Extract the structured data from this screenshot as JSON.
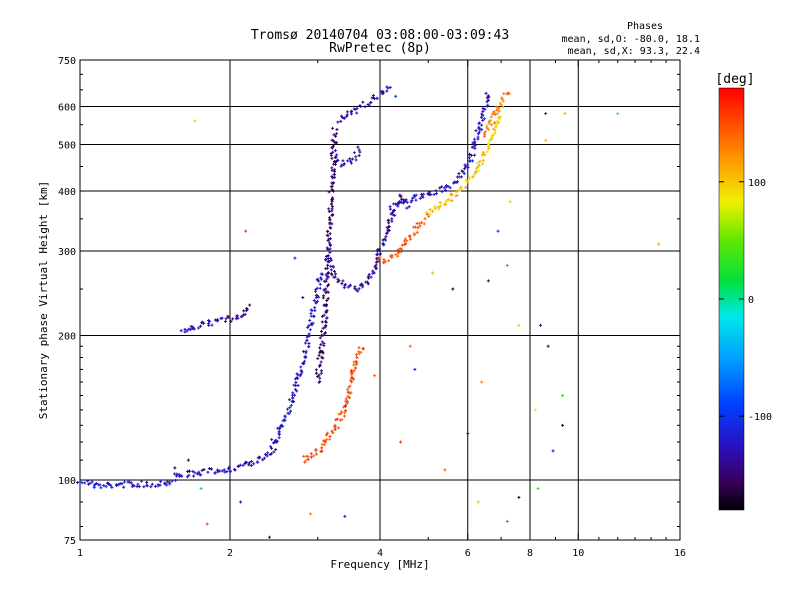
{
  "header": {
    "title_line1": "Tromsø 20140704 03:08:00-03:09:43",
    "title_line2": "RwPretec (8p)"
  },
  "phases_box": {
    "heading": "Phases",
    "line_o": "mean, sd,O: -80.0, 18.1",
    "line_x": "mean, sd,X:  93.3, 22.4"
  },
  "colorbar": {
    "label": "[deg]",
    "ticks": [
      {
        "label": "100",
        "value": 100
      },
      {
        "label": "0",
        "value": 0
      },
      {
        "label": "-100",
        "value": -100
      }
    ],
    "range": [
      -180,
      180
    ]
  },
  "chart_data": {
    "type": "scatter",
    "title": "Tromsø 20140704 03:08:00-03:09:43",
    "subtitle": "RwPretec (8p)",
    "xlabel": "Frequency [MHz]",
    "ylabel": "Stationary phase Virtual Height [km]",
    "xscale": "log",
    "yscale": "log",
    "xlim": [
      1,
      16
    ],
    "ylim": [
      75,
      750
    ],
    "x_ticks": [
      {
        "label": "1",
        "value": 1
      },
      {
        "label": "2",
        "value": 2
      },
      {
        "label": "4",
        "value": 4
      },
      {
        "label": "6",
        "value": 6
      },
      {
        "label": "8",
        "value": 8
      },
      {
        "label": "10",
        "value": 10
      },
      {
        "label": "16",
        "value": 16
      }
    ],
    "x_gridlines": [
      2,
      4,
      6,
      8,
      10
    ],
    "y_ticks": [
      {
        "label": "75",
        "value": 75
      },
      {
        "label": "100",
        "value": 100
      },
      {
        "label": "200",
        "value": 200
      },
      {
        "label": "300",
        "value": 300
      },
      {
        "label": "400",
        "value": 400
      },
      {
        "label": "500",
        "value": 500
      },
      {
        "label": "600",
        "value": 600
      },
      {
        "label": "750",
        "value": 750
      }
    ],
    "y_gridlines": [
      100,
      200,
      300,
      400,
      500,
      600
    ],
    "color_variable": "phase [deg]",
    "traces": [
      {
        "x": [
          1.0,
          1.05,
          1.1,
          1.2,
          1.3,
          1.4,
          1.5,
          1.55
        ],
        "y": [
          100,
          98,
          97,
          98,
          98,
          98,
          99,
          100
        ],
        "phase": -120
      },
      {
        "x": [
          1.55,
          1.65,
          1.8,
          1.95,
          2.05,
          2.2,
          2.35,
          2.5
        ],
        "y": [
          102,
          103,
          104,
          105,
          106,
          108,
          112,
          120
        ],
        "phase": -130
      },
      {
        "x": [
          2.45,
          2.55,
          2.65,
          2.75,
          2.85,
          2.95,
          3.05
        ],
        "y": [
          120,
          130,
          145,
          165,
          190,
          230,
          270
        ],
        "phase": -120
      },
      {
        "x": [
          1.6,
          1.8,
          1.95,
          2.1,
          2.2
        ],
        "y": [
          205,
          212,
          215,
          220,
          230
        ],
        "phase": -135
      },
      {
        "x": [
          3.0,
          3.05,
          3.1,
          3.15,
          3.2,
          3.25
        ],
        "y": [
          160,
          185,
          220,
          300,
          400,
          540
        ],
        "phase": -150
      },
      {
        "x": [
          3.25,
          3.35,
          3.45,
          3.55,
          3.65
        ],
        "y": [
          470,
          455,
          460,
          470,
          490
        ],
        "phase": -140
      },
      {
        "x": [
          3.3,
          3.45,
          3.6,
          3.75,
          3.9,
          4.05,
          4.2
        ],
        "y": [
          560,
          575,
          590,
          610,
          625,
          640,
          655
        ],
        "phase": -130
      },
      {
        "x": [
          3.15,
          3.25,
          3.4,
          3.6,
          3.8,
          4.0,
          4.2,
          4.4,
          4.6
        ],
        "y": [
          290,
          265,
          255,
          250,
          262,
          300,
          350,
          390,
          370
        ],
        "phase": -140
      },
      {
        "x": [
          4.2,
          4.4,
          4.6,
          4.8,
          5.0,
          5.2,
          5.4,
          5.7,
          6.0,
          6.2,
          6.4,
          6.6
        ],
        "y": [
          370,
          380,
          385,
          390,
          395,
          400,
          405,
          420,
          450,
          500,
          560,
          640
        ],
        "phase": -125
      },
      {
        "x": [
          4.0,
          4.1,
          4.25,
          4.4,
          4.6,
          4.8,
          5.0
        ],
        "y": [
          290,
          285,
          290,
          300,
          320,
          340,
          355
        ],
        "phase": 145
      },
      {
        "x": [
          5.0,
          5.3,
          5.6,
          5.9,
          6.2,
          6.5,
          6.8,
          7.0
        ],
        "y": [
          360,
          375,
          390,
          410,
          440,
          480,
          530,
          600
        ],
        "phase": 100
      },
      {
        "x": [
          6.5,
          6.7,
          6.9,
          7.1,
          7.3
        ],
        "y": [
          520,
          560,
          600,
          630,
          640
        ],
        "phase": 130
      },
      {
        "x": [
          2.8,
          3.0,
          3.2,
          3.4,
          3.5,
          3.6,
          3.7
        ],
        "y": [
          110,
          115,
          125,
          140,
          160,
          180,
          190
        ],
        "phase": 150
      }
    ],
    "scattered_points": [
      {
        "x": 1.7,
        "y": 560,
        "phase": 100
      },
      {
        "x": 4.3,
        "y": 630,
        "phase": -90
      },
      {
        "x": 8.6,
        "y": 580,
        "phase": -110
      },
      {
        "x": 8.6,
        "y": 510,
        "phase": 100
      },
      {
        "x": 9.4,
        "y": 580,
        "phase": 110
      },
      {
        "x": 12.0,
        "y": 580,
        "phase": -10
      },
      {
        "x": 14.5,
        "y": 310,
        "phase": 110
      },
      {
        "x": 8.4,
        "y": 210,
        "phase": -140
      },
      {
        "x": 8.7,
        "y": 190,
        "phase": -150
      },
      {
        "x": 9.3,
        "y": 150,
        "phase": 30
      },
      {
        "x": 9.3,
        "y": 130,
        "phase": -160
      },
      {
        "x": 8.9,
        "y": 115,
        "phase": -130
      },
      {
        "x": 7.6,
        "y": 210,
        "phase": 100
      },
      {
        "x": 7.2,
        "y": 280,
        "phase": 140
      },
      {
        "x": 6.4,
        "y": 160,
        "phase": 130
      },
      {
        "x": 6.6,
        "y": 260,
        "phase": -150
      },
      {
        "x": 5.6,
        "y": 250,
        "phase": -170
      },
      {
        "x": 5.1,
        "y": 270,
        "phase": 60
      },
      {
        "x": 4.7,
        "y": 170,
        "phase": -110
      },
      {
        "x": 4.6,
        "y": 190,
        "phase": 140
      },
      {
        "x": 3.9,
        "y": 165,
        "phase": 140
      },
      {
        "x": 4.4,
        "y": 120,
        "phase": 160
      },
      {
        "x": 5.4,
        "y": 105,
        "phase": 140
      },
      {
        "x": 6.3,
        "y": 90,
        "phase": 100
      },
      {
        "x": 7.2,
        "y": 82,
        "phase": 150
      },
      {
        "x": 7.6,
        "y": 92,
        "phase": -160
      },
      {
        "x": 8.3,
        "y": 96,
        "phase": 40
      },
      {
        "x": 2.4,
        "y": 76,
        "phase": -150
      },
      {
        "x": 1.8,
        "y": 81,
        "phase": 150
      },
      {
        "x": 2.1,
        "y": 90,
        "phase": -130
      },
      {
        "x": 2.9,
        "y": 85,
        "phase": 130
      },
      {
        "x": 3.4,
        "y": 84,
        "phase": -120
      },
      {
        "x": 1.55,
        "y": 106,
        "phase": -170
      },
      {
        "x": 1.65,
        "y": 110,
        "phase": -160
      },
      {
        "x": 1.75,
        "y": 96,
        "phase": 10
      },
      {
        "x": 2.15,
        "y": 330,
        "phase": 160
      },
      {
        "x": 2.7,
        "y": 290,
        "phase": -120
      },
      {
        "x": 2.8,
        "y": 240,
        "phase": -140
      },
      {
        "x": 6.9,
        "y": 330,
        "phase": -100
      },
      {
        "x": 7.3,
        "y": 380,
        "phase": 100
      },
      {
        "x": 8.2,
        "y": 140,
        "phase": 80
      },
      {
        "x": 6.0,
        "y": 125,
        "phase": -130
      }
    ]
  }
}
